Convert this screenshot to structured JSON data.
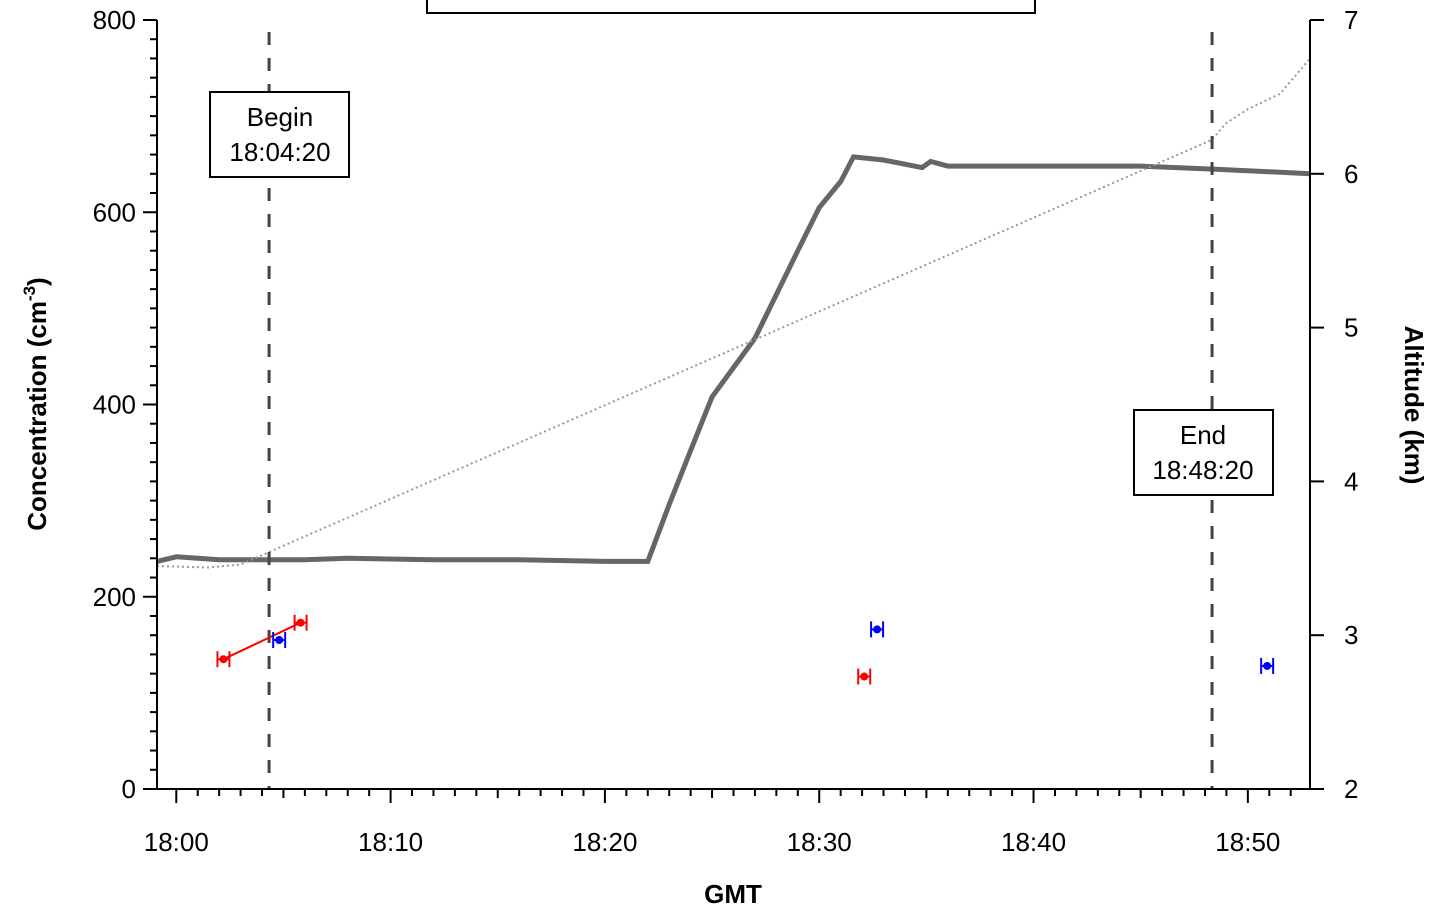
{
  "chart_data": {
    "type": "scatter",
    "title": "",
    "xlabel": "GMT",
    "ylabel_left": "Concentration  (cm",
    "ylabel_left_sup": "-3",
    "ylabel_left_close": ")",
    "ylabel_right": "Altitude  (km)",
    "x_ticks": [
      "18:00",
      "18:10",
      "18:20",
      "18:30",
      "18:40",
      "18:50"
    ],
    "x_tick_minutes": [
      0,
      10,
      20,
      30,
      40,
      50
    ],
    "xlim_minutes": [
      -0.9,
      52.9
    ],
    "y_left_ticks": [
      0,
      200,
      400,
      600,
      800
    ],
    "ylim_left": [
      0,
      800
    ],
    "y_right_ticks": [
      2,
      3,
      4,
      5,
      6,
      7
    ],
    "ylim_right": [
      2,
      7
    ],
    "grid": false,
    "markers": [
      {
        "label_line1": "Begin",
        "label_line2": "18:04:20",
        "x_minutes": 4.33
      },
      {
        "label_line1": "End",
        "label_line2": "18:48:20",
        "x_minutes": 48.33
      }
    ],
    "series": [
      {
        "axis": "left",
        "color": "#ff0000",
        "connected": true,
        "points": [
          [
            2.2,
            135
          ],
          [
            5.8,
            173
          ]
        ]
      },
      {
        "axis": "left",
        "color": "#ff0000",
        "connected": false,
        "points": [
          [
            32.1,
            117
          ]
        ]
      },
      {
        "axis": "left",
        "color": "#0000ff",
        "connected": false,
        "points": [
          [
            4.8,
            155
          ],
          [
            32.7,
            166
          ],
          [
            50.9,
            128
          ]
        ]
      },
      {
        "axis": "right",
        "color": "#666666",
        "style": "solid",
        "points": [
          [
            -0.9,
            3.48
          ],
          [
            0,
            3.51
          ],
          [
            2,
            3.49
          ],
          [
            6,
            3.49
          ],
          [
            8,
            3.5
          ],
          [
            12,
            3.49
          ],
          [
            16,
            3.49
          ],
          [
            20,
            3.48
          ],
          [
            22,
            3.48
          ],
          [
            23,
            3.85
          ],
          [
            24,
            4.2
          ],
          [
            25,
            4.55
          ],
          [
            27,
            4.93
          ],
          [
            29,
            5.5
          ],
          [
            30,
            5.78
          ],
          [
            31,
            5.95
          ],
          [
            31.6,
            6.11
          ],
          [
            33,
            6.09
          ],
          [
            34.8,
            6.04
          ],
          [
            35.2,
            6.08
          ],
          [
            36,
            6.05
          ],
          [
            40,
            6.05
          ],
          [
            45,
            6.05
          ],
          [
            48.5,
            6.03
          ],
          [
            50,
            6.02
          ],
          [
            52.9,
            6.0
          ]
        ]
      },
      {
        "axis": "right",
        "color": "#999999",
        "style": "dotted",
        "points": [
          [
            -0.9,
            3.45
          ],
          [
            1.5,
            3.44
          ],
          [
            3,
            3.46
          ],
          [
            48.3,
            6.22
          ],
          [
            49,
            6.33
          ],
          [
            50,
            6.42
          ],
          [
            51.5,
            6.52
          ],
          [
            52.9,
            6.75
          ]
        ]
      }
    ]
  }
}
